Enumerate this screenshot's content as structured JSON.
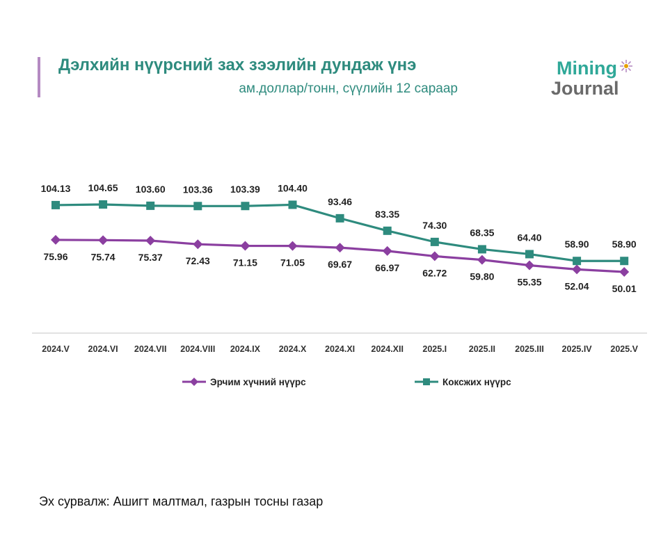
{
  "header": {
    "title": "Дэлхийн нүүрсний зах зээлийн дундаж үнэ",
    "subtitle": "ам.доллар/тонн, сүүлийн 12 сараар"
  },
  "logo": {
    "line1": "Mining",
    "line2": "Journal"
  },
  "source": "Эх сурвалж: Ашигт малтмал, газрын тосны газар",
  "colors": {
    "accent": "#2e8b7e",
    "series_purple": "#8b3fa0",
    "series_green": "#2e8b7e",
    "bar": "#b58ac2"
  },
  "chart_data": {
    "type": "line",
    "categories": [
      "2024.V",
      "2024.VI",
      "2024.VII",
      "2024.VIII",
      "2024.IX",
      "2024.X",
      "2024.XI",
      "2024.XII",
      "2025.I",
      "2025.II",
      "2025.III",
      "2025.IV",
      "2025.V"
    ],
    "series": [
      {
        "name": "Эрчим хүчний нүүрс",
        "color": "#8b3fa0",
        "marker": "diamond",
        "values": [
          "75.96",
          "75.74",
          "75.37",
          "72.43",
          "71.15",
          "71.05",
          "69.67",
          "66.97",
          "62.72",
          "59.80",
          "55.35",
          "52.04",
          "50.01"
        ]
      },
      {
        "name": "Коксжих нүүрс",
        "color": "#2e8b7e",
        "marker": "square",
        "values": [
          "104.13",
          "104.65",
          "103.60",
          "103.36",
          "103.39",
          "104.40",
          "93.46",
          "83.35",
          "74.30",
          "68.35",
          "64.40",
          "58.90",
          "58.90"
        ]
      }
    ],
    "ylim": [
      20,
      130
    ],
    "legend": "bottom",
    "grid": false
  }
}
